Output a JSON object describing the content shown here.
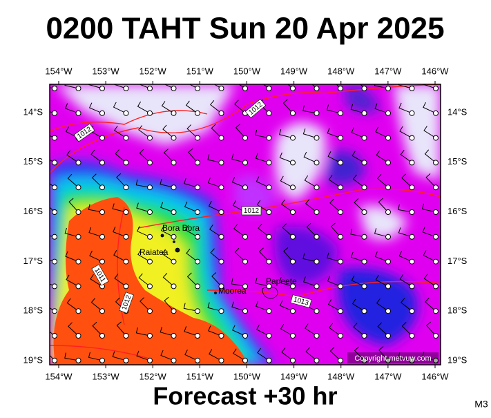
{
  "header": {
    "title": "0200 TAHT Sun 20 Apr 2025"
  },
  "map": {
    "lon_labels": [
      "154°W",
      "153°W",
      "152°W",
      "151°W",
      "150°W",
      "149°W",
      "148°W",
      "147°W",
      "146°W"
    ],
    "lat_labels": [
      "14°S",
      "15°S",
      "16°S",
      "17°S",
      "18°S",
      "19°S"
    ],
    "places": [
      "Bora Bora",
      "Raiatea",
      "Moorea",
      "Papeete"
    ],
    "isobar_labels": [
      "1012",
      "1012",
      "1012",
      "1011",
      "1012",
      "1013"
    ],
    "copyright": "Copyright metvuw.com"
  },
  "footer": {
    "forecast": "Forecast +30 hr",
    "code": "M3"
  }
}
